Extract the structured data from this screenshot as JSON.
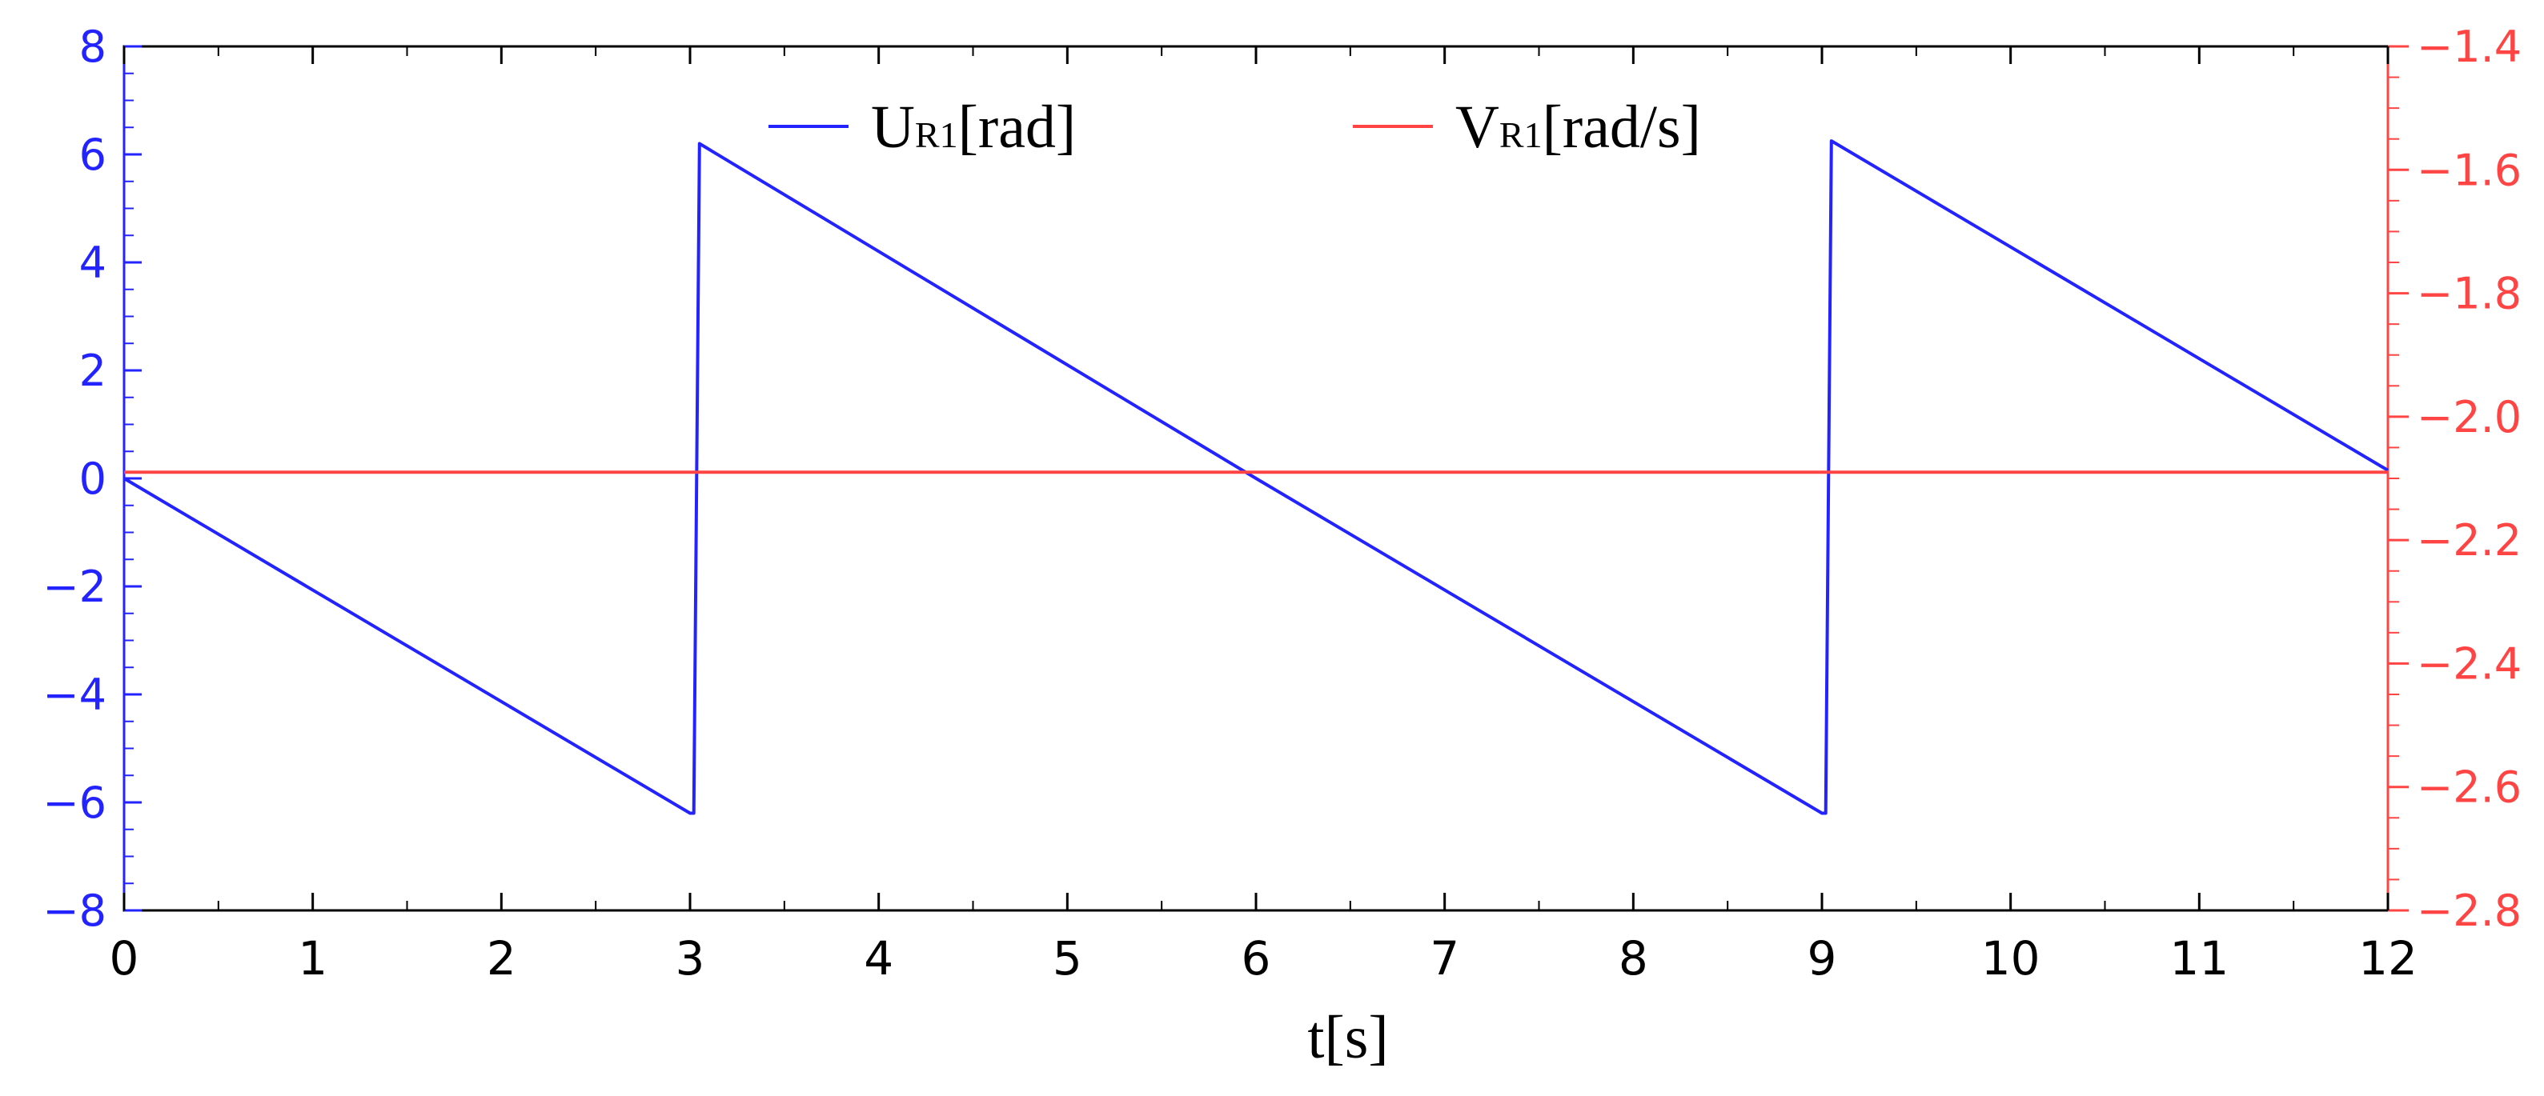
{
  "chart_data": {
    "type": "line",
    "x_label": "t[s]",
    "x_range": [
      0,
      12
    ],
    "x_ticks": [
      0,
      1,
      2,
      3,
      4,
      5,
      6,
      7,
      8,
      9,
      10,
      11,
      12
    ],
    "y_left_range": [
      -8,
      8
    ],
    "y_left_ticks": [
      -8,
      -6,
      -4,
      -2,
      0,
      2,
      4,
      6,
      8
    ],
    "y_right_range": [
      -2.8,
      -1.4
    ],
    "y_right_ticks": [
      -2.8,
      -2.6,
      -2.4,
      -2.2,
      -2.0,
      -1.8,
      -1.6,
      -1.4
    ],
    "grid": false,
    "legend_position": "top-center",
    "series": [
      {
        "name": "UR1[rad]",
        "legend_main": "U",
        "legend_sub": "R1",
        "legend_unit": "[rad]",
        "axis": "left",
        "color": "#2323ff",
        "x": [
          0,
          3.0,
          3.02,
          3.05,
          6.0,
          9.0,
          9.02,
          9.05,
          12.0
        ],
        "y": [
          0,
          -6.2,
          -6.2,
          6.2,
          0,
          -6.2,
          -6.2,
          6.25,
          0.15
        ]
      },
      {
        "name": "VR1[rad/s]",
        "legend_main": "V",
        "legend_sub": "R1",
        "legend_unit": "[rad/s]",
        "axis": "right",
        "color": "#ff4444",
        "x": [
          0,
          12
        ],
        "y": [
          -2.09,
          -2.09
        ]
      }
    ]
  }
}
